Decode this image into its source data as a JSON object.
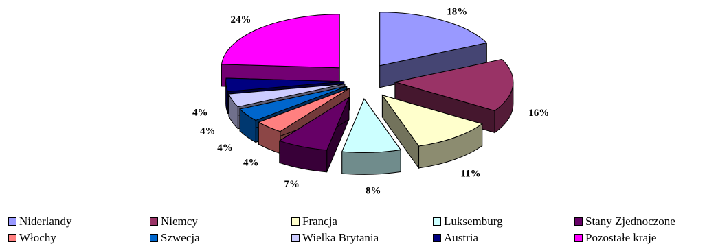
{
  "chart_data": {
    "type": "pie",
    "style": "3d-exploded",
    "title": "",
    "slices": [
      {
        "name": "Niderlandy",
        "value": 18,
        "label": "18%",
        "color": "#9999ff"
      },
      {
        "name": "Niemcy",
        "value": 16,
        "label": "16%",
        "color": "#993366"
      },
      {
        "name": "Francja",
        "value": 11,
        "label": "11%",
        "color": "#ffffcc"
      },
      {
        "name": "Luksemburg",
        "value": 8,
        "label": "8%",
        "color": "#ccffff"
      },
      {
        "name": "Stany Zjednoczone",
        "value": 7,
        "label": "7%",
        "color": "#660066"
      },
      {
        "name": "Włochy",
        "value": 4,
        "label": "4%",
        "color": "#ff8080"
      },
      {
        "name": "Szwecja",
        "value": 4,
        "label": "4%",
        "color": "#0066cc"
      },
      {
        "name": "Wielka Brytania",
        "value": 4,
        "label": "4%",
        "color": "#ccccff"
      },
      {
        "name": "Austria",
        "value": 4,
        "label": "4%",
        "color": "#000080"
      },
      {
        "name": "Pozostałe kraje",
        "value": 24,
        "label": "24%",
        "color": "#ff00ff"
      }
    ],
    "legend": {
      "position": "bottom"
    }
  }
}
